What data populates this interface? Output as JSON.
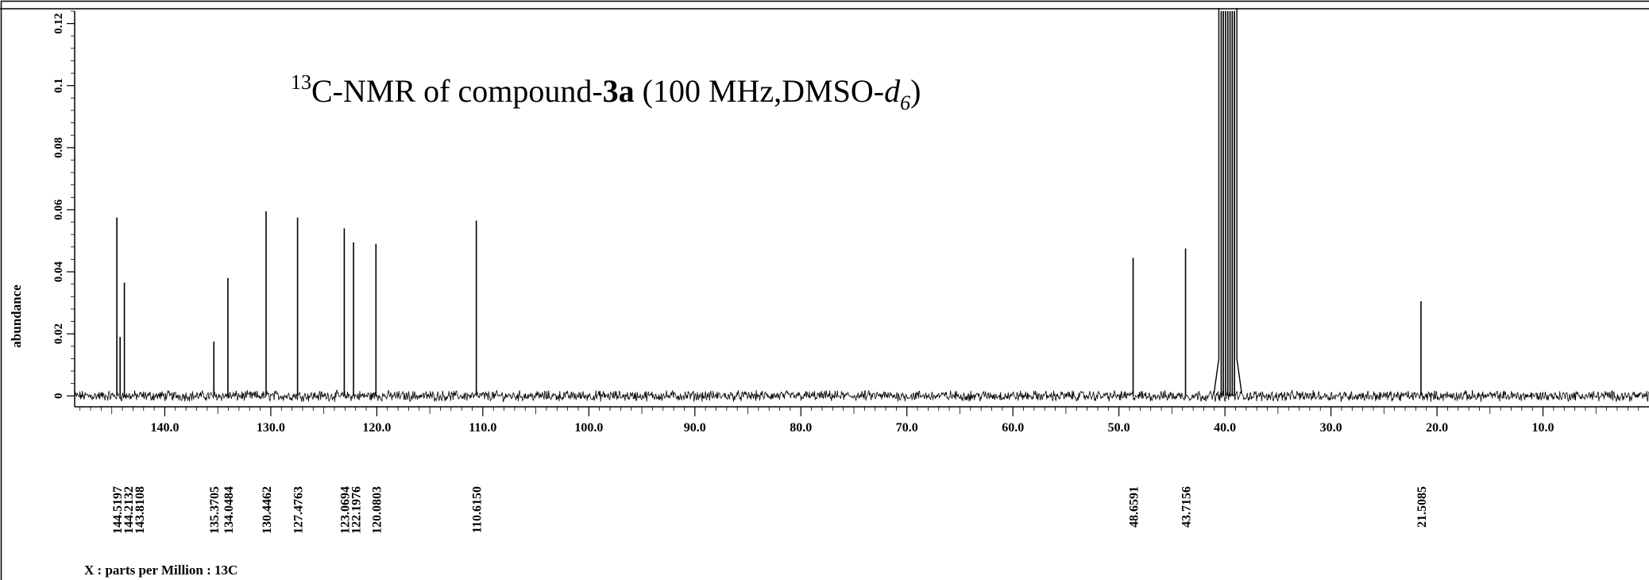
{
  "header_text": "",
  "chart_data": {
    "type": "line",
    "title_html_parts": {
      "sup": "13",
      "pre": "C-NMR of compound-",
      "bold": "3a",
      "mid": " (100 MHz,DMSO-",
      "italic": "d",
      "sub": "6",
      "post": ")"
    },
    "xlabel": "X : parts per Million : 13C",
    "ylabel": "abundance",
    "xlim": [
      148.5,
      0
    ],
    "ylim": [
      -0.003,
      0.124
    ],
    "x_reversed": true,
    "x_ticks": [
      140.0,
      130.0,
      120.0,
      110.0,
      100.0,
      90.0,
      80.0,
      70.0,
      60.0,
      50.0,
      40.0,
      30.0,
      20.0,
      10.0
    ],
    "x_tick_labels": [
      "140.0",
      "130.0",
      "120.0",
      "110.0",
      "100.0",
      "90.0",
      "80.0",
      "70.0",
      "60.0",
      "50.0",
      "40.0",
      "30.0",
      "20.0",
      "10.0"
    ],
    "y_ticks": [
      0,
      0.02,
      0.04,
      0.06,
      0.08,
      0.1,
      0.12
    ],
    "y_tick_labels": [
      "0",
      "0.02",
      "0.04",
      "0.06",
      "0.08",
      "0.1",
      "0.12"
    ],
    "grid": false,
    "peaks": [
      {
        "x": 144.5197,
        "y": 0.0575
      },
      {
        "x": 144.2132,
        "y": 0.019
      },
      {
        "x": 143.8108,
        "y": 0.0365
      },
      {
        "x": 135.3705,
        "y": 0.0175
      },
      {
        "x": 134.0484,
        "y": 0.038
      },
      {
        "x": 130.4462,
        "y": 0.0595
      },
      {
        "x": 127.4763,
        "y": 0.0575
      },
      {
        "x": 123.0694,
        "y": 0.054
      },
      {
        "x": 122.1976,
        "y": 0.0495
      },
      {
        "x": 120.0803,
        "y": 0.049
      },
      {
        "x": 110.615,
        "y": 0.0565
      },
      {
        "x": 48.6591,
        "y": 0.0445
      },
      {
        "x": 43.7156,
        "y": 0.0475
      },
      {
        "x": 21.5085,
        "y": 0.0305
      }
    ],
    "solvent_peaks": [
      {
        "x": 40.35,
        "y": 0.124
      },
      {
        "x": 40.15,
        "y": 0.124
      },
      {
        "x": 39.94,
        "y": 0.124
      },
      {
        "x": 39.73,
        "y": 0.124
      },
      {
        "x": 39.52,
        "y": 0.124
      },
      {
        "x": 39.31,
        "y": 0.124
      },
      {
        "x": 39.1,
        "y": 0.124
      }
    ],
    "peak_labels": [
      "144.5197",
      "144.2132",
      "143.8108",
      "135.3705",
      "134.0484",
      "130.4462",
      "127.4763",
      "123.0694",
      "122.1976",
      "120.0803",
      "110.6150",
      "48.6591",
      "43.7156",
      "21.5085"
    ],
    "line_color": "#000000"
  }
}
